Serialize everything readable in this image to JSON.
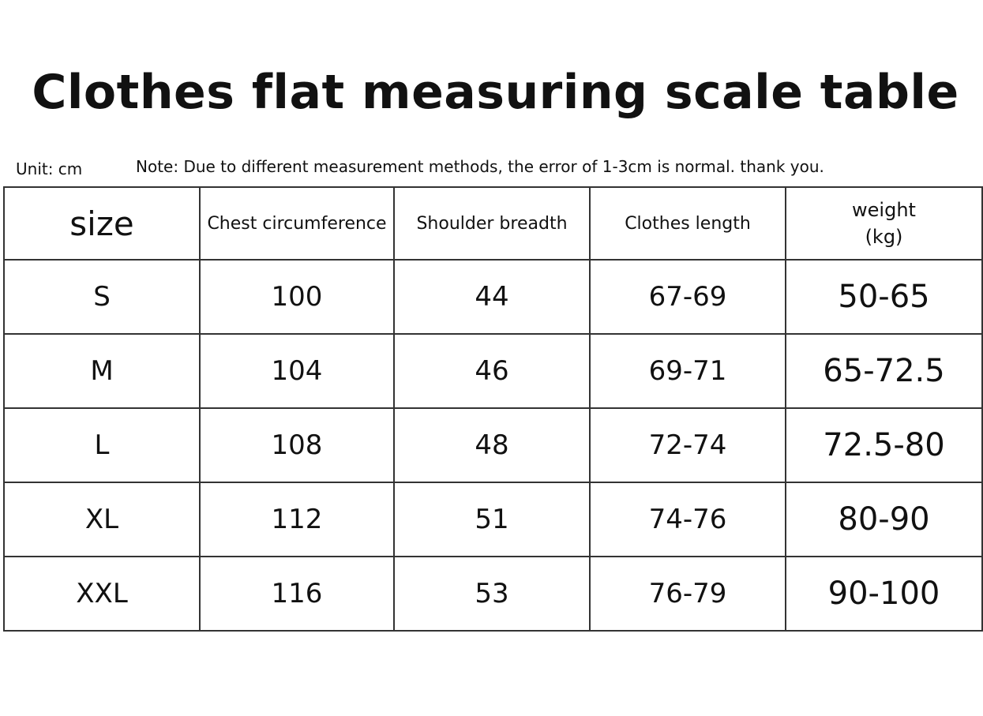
{
  "header": {
    "title": "Clothes flat measuring scale table",
    "unit": "Unit: cm",
    "note": "Note: Due to different measurement methods, the error of 1-3cm is normal. thank you."
  },
  "table": {
    "columns": [
      "size",
      "Chest circumference",
      "Shoulder breadth",
      "Clothes length",
      "weight (kg)"
    ],
    "rows": [
      [
        "S",
        "100",
        "44",
        "67-69",
        "50-65"
      ],
      [
        "M",
        "104",
        "46",
        "69-71",
        "65-72.5"
      ],
      [
        "L",
        "108",
        "48",
        "72-74",
        "72.5-80"
      ],
      [
        "XL",
        "112",
        "51",
        "74-76",
        "80-90"
      ],
      [
        "XXL",
        "116",
        "53",
        "76-79",
        "90-100"
      ]
    ]
  }
}
